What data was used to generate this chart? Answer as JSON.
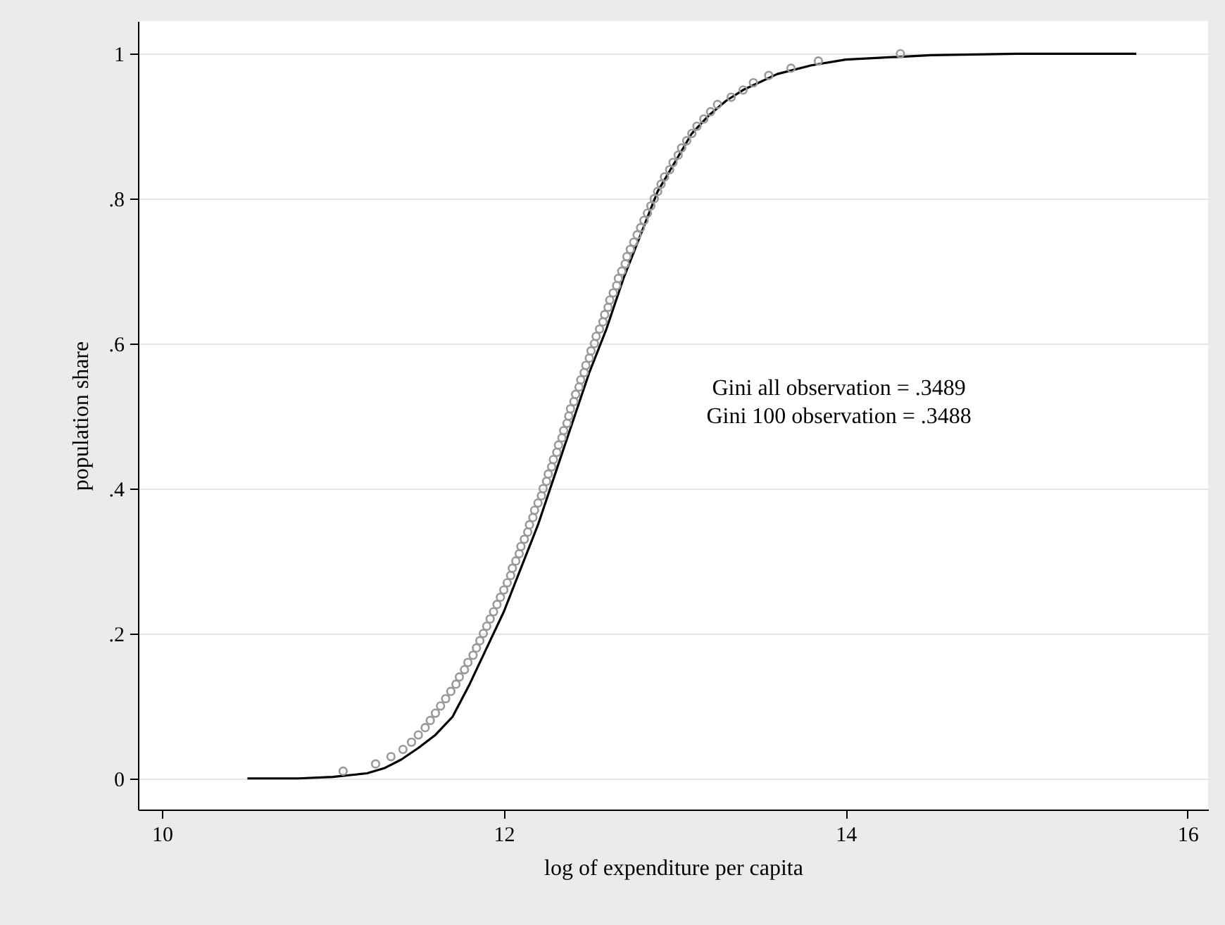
{
  "chart_data": {
    "type": "scatter",
    "xlabel": "log of expenditure per capita",
    "ylabel": "population share",
    "annotations": [
      "Gini all observation = .3489",
      "Gini 100 observation = .3488"
    ],
    "xlim": [
      9.86,
      16.12
    ],
    "ylim": [
      -0.043,
      1.045
    ],
    "xticks": [
      10,
      12,
      14,
      16
    ],
    "yticks": [
      0,
      {
        "value": 0.2,
        "label": ".2"
      },
      {
        "value": 0.4,
        "label": ".4"
      },
      {
        "value": 0.6,
        "label": ".6"
      },
      {
        "value": 0.8,
        "label": ".8"
      },
      1
    ],
    "grid": "y",
    "series": [
      {
        "type": "line",
        "color": "#000000",
        "line_style": "solid",
        "marker": "none",
        "x": [
          10.5,
          10.8,
          11.0,
          11.2,
          11.3,
          11.4,
          11.5,
          11.6,
          11.7,
          11.8,
          11.9,
          12.0,
          12.1,
          12.2,
          12.3,
          12.4,
          12.5,
          12.6,
          12.7,
          12.8,
          12.9,
          13.0,
          13.1,
          13.2,
          13.3,
          13.4,
          13.6,
          13.8,
          14.0,
          14.5,
          15.0,
          15.7
        ],
        "values": [
          0,
          0,
          0.002,
          0.007,
          0.014,
          0.026,
          0.042,
          0.06,
          0.085,
          0.13,
          0.18,
          0.23,
          0.29,
          0.35,
          0.42,
          0.49,
          0.56,
          0.62,
          0.69,
          0.75,
          0.81,
          0.85,
          0.89,
          0.915,
          0.935,
          0.95,
          0.972,
          0.984,
          0.992,
          0.998,
          1.0,
          1.0
        ]
      },
      {
        "type": "scatter",
        "color": "#999999",
        "marker": "circle",
        "x": [
          11.06,
          11.25,
          11.34,
          11.41,
          11.46,
          11.5,
          11.54,
          11.57,
          11.6,
          11.63,
          11.66,
          11.69,
          11.72,
          11.74,
          11.77,
          11.79,
          11.82,
          11.84,
          11.86,
          11.88,
          11.9,
          11.92,
          11.94,
          11.96,
          11.98,
          12.0,
          12.02,
          12.04,
          12.05,
          12.07,
          12.09,
          12.1,
          12.12,
          12.14,
          12.15,
          12.17,
          12.18,
          12.2,
          12.22,
          12.23,
          12.25,
          12.26,
          12.28,
          12.29,
          12.31,
          12.32,
          12.34,
          12.35,
          12.37,
          12.38,
          12.39,
          12.41,
          12.42,
          12.44,
          12.45,
          12.47,
          12.48,
          12.5,
          12.51,
          12.53,
          12.54,
          12.56,
          12.58,
          12.59,
          12.61,
          12.62,
          12.64,
          12.66,
          12.67,
          12.69,
          12.71,
          12.72,
          12.74,
          12.76,
          12.78,
          12.8,
          12.82,
          12.84,
          12.86,
          12.88,
          12.9,
          12.92,
          12.94,
          12.97,
          12.99,
          13.02,
          13.04,
          13.07,
          13.1,
          13.13,
          13.17,
          13.21,
          13.25,
          13.33,
          13.4,
          13.46,
          13.55,
          13.68,
          13.84,
          14.32
        ],
        "values": [
          0.01,
          0.02,
          0.03,
          0.04,
          0.05,
          0.06,
          0.07,
          0.08,
          0.09,
          0.1,
          0.11,
          0.12,
          0.13,
          0.14,
          0.15,
          0.16,
          0.17,
          0.18,
          0.19,
          0.2,
          0.21,
          0.22,
          0.23,
          0.24,
          0.25,
          0.26,
          0.27,
          0.28,
          0.29,
          0.3,
          0.31,
          0.32,
          0.33,
          0.34,
          0.35,
          0.36,
          0.37,
          0.38,
          0.39,
          0.4,
          0.41,
          0.42,
          0.43,
          0.44,
          0.45,
          0.46,
          0.47,
          0.48,
          0.49,
          0.5,
          0.51,
          0.52,
          0.53,
          0.54,
          0.55,
          0.56,
          0.57,
          0.58,
          0.59,
          0.6,
          0.61,
          0.62,
          0.63,
          0.64,
          0.65,
          0.66,
          0.67,
          0.68,
          0.69,
          0.7,
          0.71,
          0.72,
          0.73,
          0.74,
          0.75,
          0.76,
          0.77,
          0.78,
          0.79,
          0.8,
          0.81,
          0.82,
          0.83,
          0.84,
          0.85,
          0.86,
          0.87,
          0.88,
          0.89,
          0.9,
          0.91,
          0.92,
          0.93,
          0.94,
          0.95,
          0.96,
          0.97,
          0.98,
          0.99,
          1.0
        ]
      }
    ]
  }
}
